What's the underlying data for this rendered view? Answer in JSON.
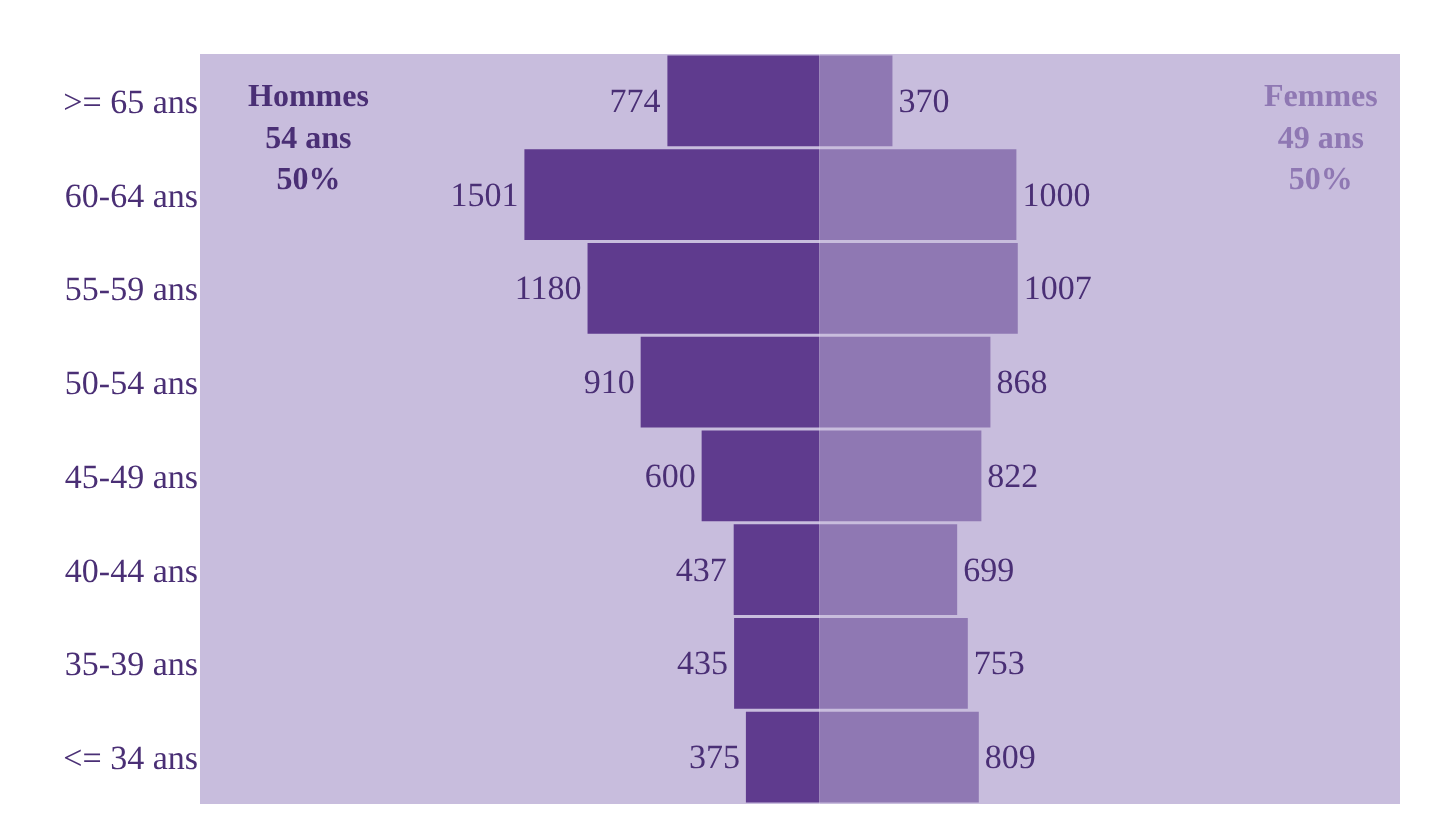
{
  "chart_data": [
    {
      "type": "bar",
      "orientation": "horizontal",
      "categories": [
        ">= 65 ans",
        "60-64 ans",
        "55-59 ans",
        "50-54 ans",
        "45-49 ans",
        "40-44 ans",
        "35-39 ans",
        "<= 34 ans"
      ],
      "series": [
        {
          "name": "Hommes",
          "color": "#5f3b8e",
          "values": [
            774,
            1501,
            1180,
            910,
            600,
            437,
            435,
            375
          ],
          "value_labels": [
            "774",
            "1501",
            "1180",
            "910",
            "600",
            "437",
            "435",
            "375"
          ]
        }
      ],
      "annotations": [
        "54 ans\n50%"
      ],
      "xlim": [
        3150,
        0
      ],
      "tick_labels": "y",
      "grid": false,
      "legend": false
    },
    {
      "type": "bar",
      "orientation": "horizontal",
      "categories": [
        ">= 65 ans",
        "60-64 ans",
        "55-59 ans",
        "50-54 ans",
        "45-49 ans",
        "40-44 ans",
        "35-39 ans",
        "<= 34 ans"
      ],
      "series": [
        {
          "name": "Femmes",
          "color": "#8f78b3",
          "values": [
            370,
            1000,
            1007,
            868,
            822,
            699,
            753,
            809
          ],
          "value_labels": [
            "370",
            "1000",
            "1007",
            "868",
            "822",
            "699",
            "753",
            "809"
          ]
        }
      ],
      "annotations": [
        "49 ans\n50%"
      ],
      "xlim": [
        0,
        2950
      ],
      "tick_labels": false,
      "grid": false,
      "legend": false
    }
  ]
}
